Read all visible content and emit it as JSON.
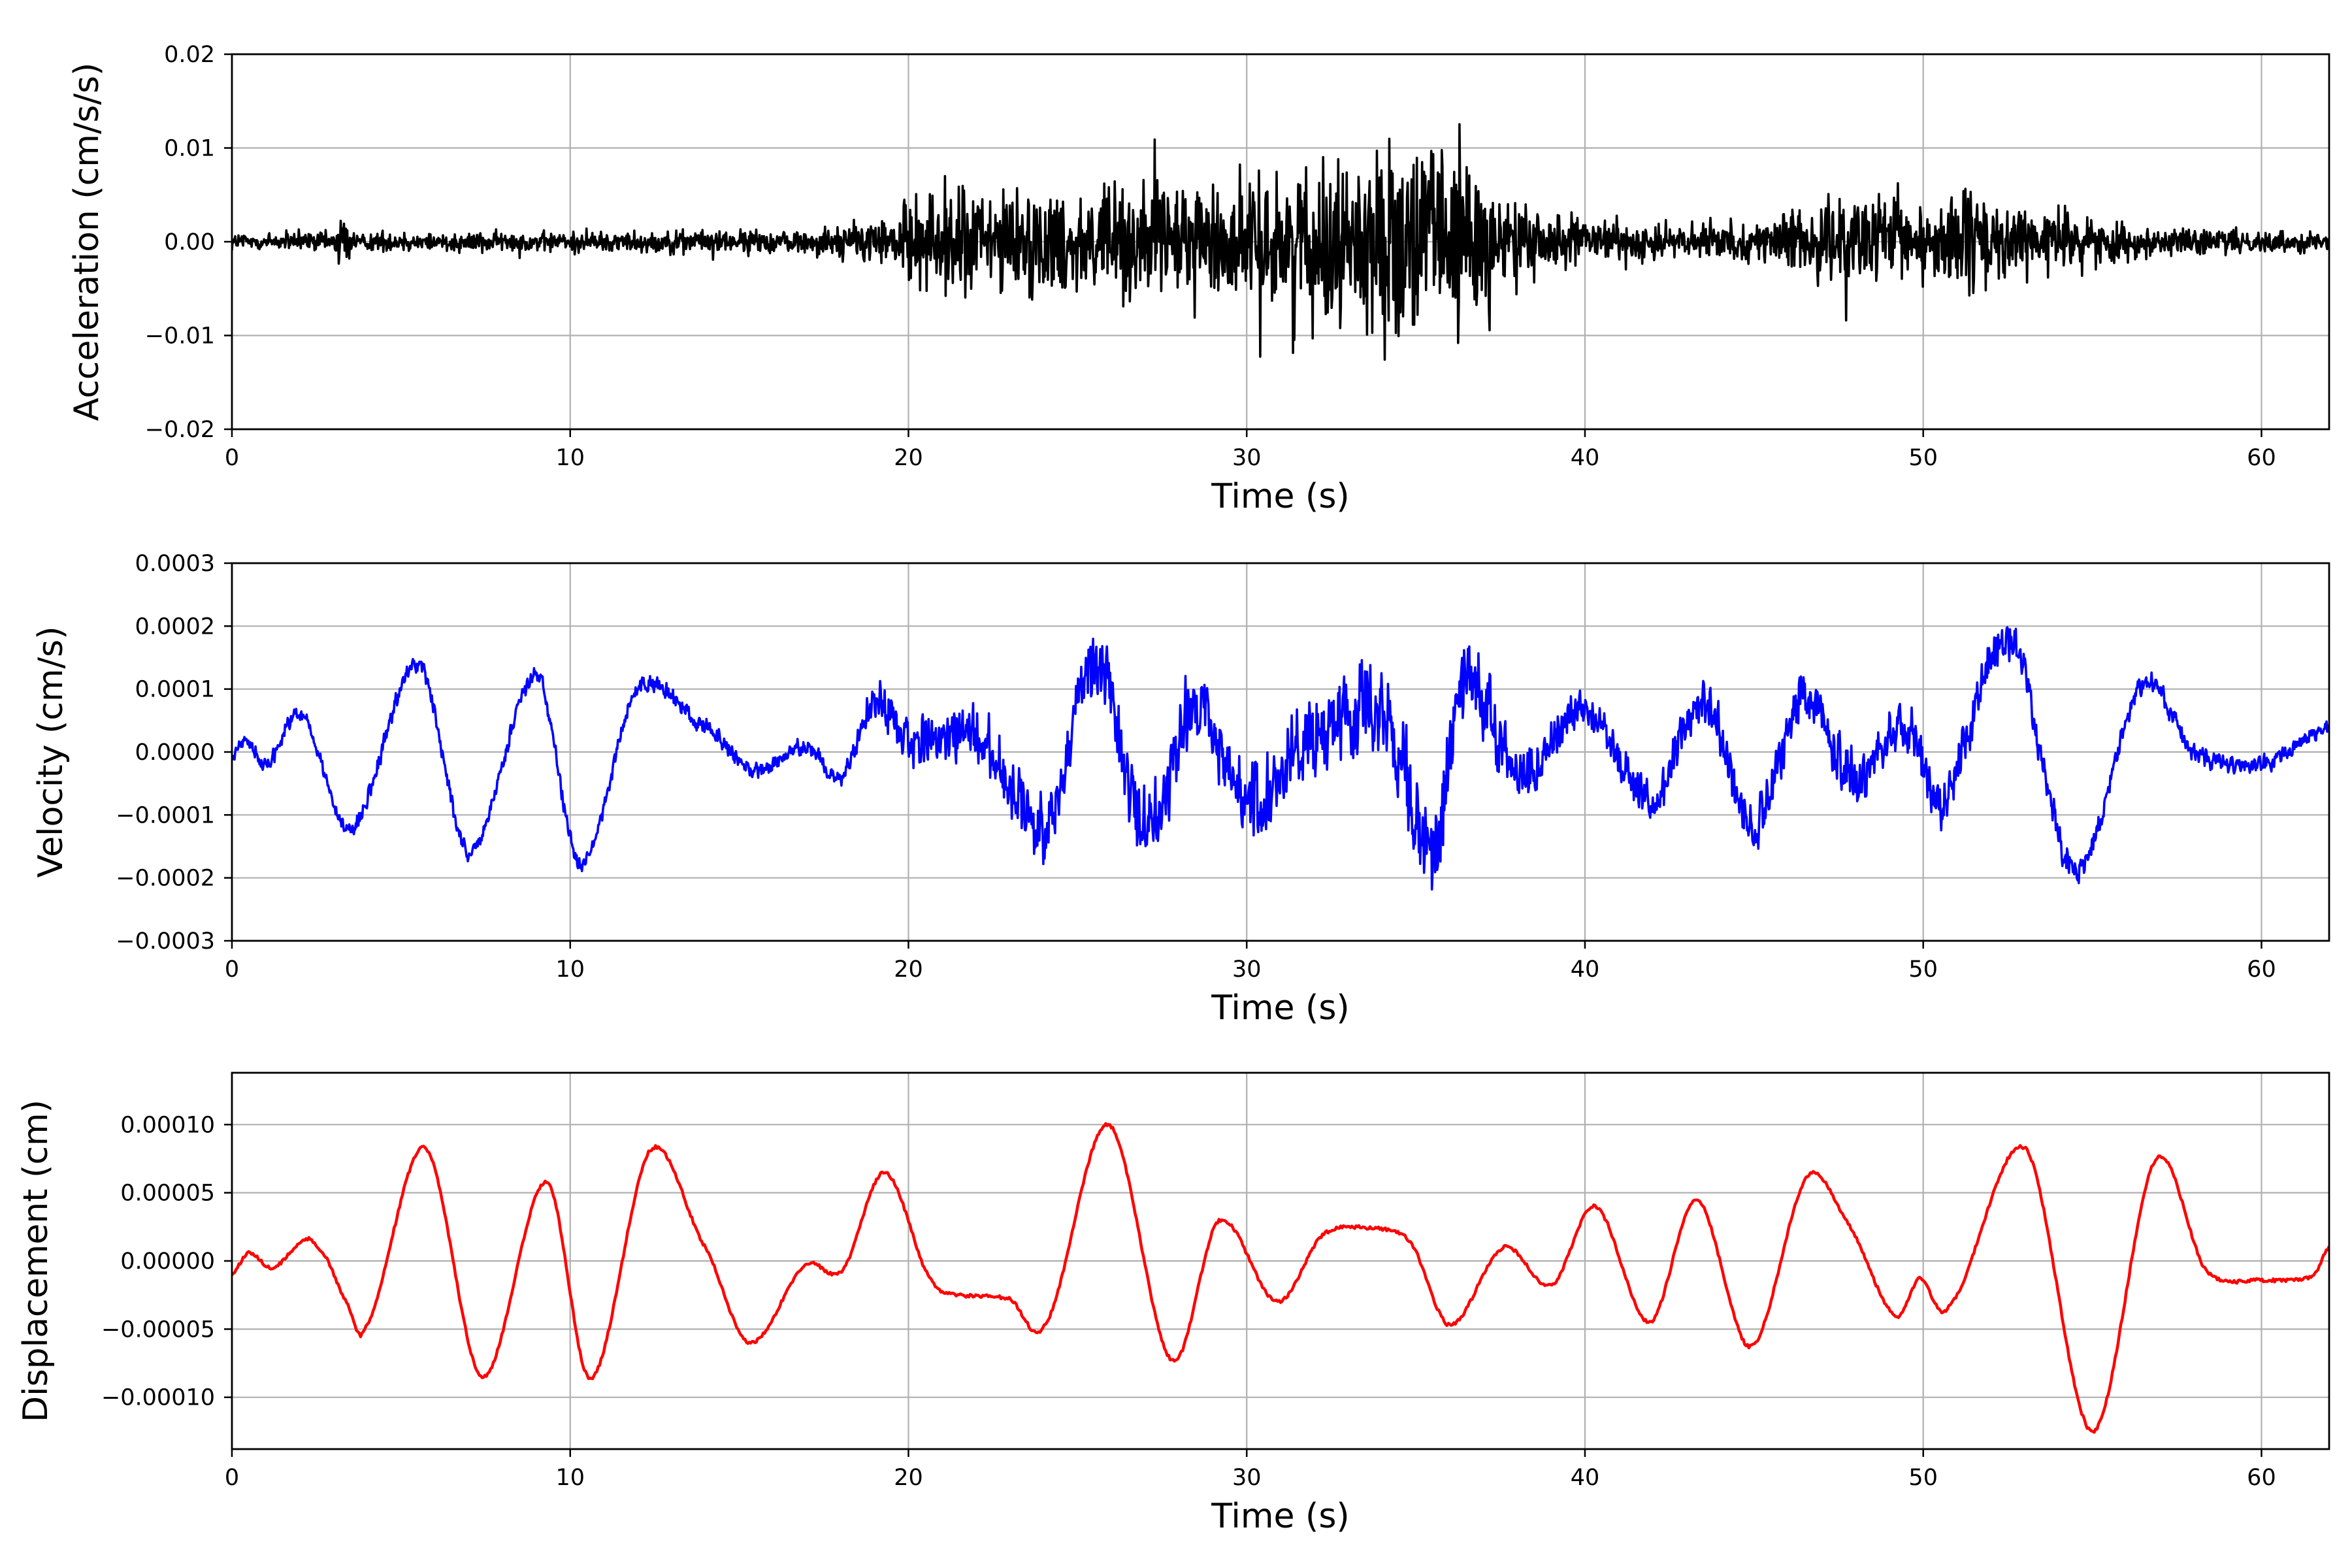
{
  "chart_data": [
    {
      "type": "line",
      "xlabel": "Time (s)",
      "ylabel": "Acceleration (cm/s/s)",
      "xlim": [
        0,
        62
      ],
      "ylim": [
        -0.02,
        0.02
      ],
      "grid": true,
      "series_color": "#000000",
      "x_ticks": [
        0,
        10,
        20,
        30,
        40,
        50,
        60
      ],
      "x_tick_labels": [
        "0",
        "10",
        "20",
        "30",
        "40",
        "50",
        "60"
      ],
      "y_ticks": [
        -0.02,
        -0.01,
        0.0,
        0.01,
        0.02
      ],
      "y_tick_labels": [
        "−0.02",
        "−0.01",
        "0.00",
        "0.01",
        "0.02"
      ],
      "envelope": {
        "t": [
          0,
          3,
          3.3,
          3.6,
          10,
          17,
          19.5,
          21,
          23,
          25,
          27,
          29,
          31,
          32.5,
          34,
          35.5,
          36.5,
          37.5,
          39,
          40,
          45,
          47,
          48,
          50,
          51,
          53,
          57,
          62
        ],
        "amp": [
          0.0015,
          0.0015,
          0.0055,
          0.0015,
          0.0015,
          0.0018,
          0.004,
          0.009,
          0.008,
          0.008,
          0.009,
          0.009,
          0.01,
          0.012,
          0.013,
          0.015,
          0.016,
          0.007,
          0.005,
          0.003,
          0.0025,
          0.006,
          0.007,
          0.006,
          0.008,
          0.005,
          0.002,
          0.0015
        ]
      }
    },
    {
      "type": "line",
      "xlabel": "Time (s)",
      "ylabel": "Velocity (cm/s)",
      "xlim": [
        0,
        62
      ],
      "ylim": [
        -0.0003,
        0.0003
      ],
      "grid": true,
      "series_color": "#0000ff",
      "x_ticks": [
        0,
        10,
        20,
        30,
        40,
        50,
        60
      ],
      "x_tick_labels": [
        "0",
        "10",
        "20",
        "30",
        "40",
        "50",
        "60"
      ],
      "y_ticks": [
        -0.0003,
        -0.0002,
        -0.0001,
        0.0,
        0.0001,
        0.0002,
        0.0003
      ],
      "y_tick_labels": [
        "−0.0003",
        "−0.0002",
        "−0.0001",
        "0.0000",
        "0.0001",
        "0.0002",
        "0.0003"
      ],
      "trend": {
        "t": [
          0,
          0.5,
          1,
          2,
          3.5,
          5.5,
          7,
          9,
          10.3,
          12,
          14,
          15.5,
          17,
          18,
          19,
          20,
          22,
          24,
          25.5,
          27,
          28.5,
          30,
          32,
          34,
          35.5,
          36.5,
          38,
          40,
          42,
          43.5,
          45,
          46.5,
          48,
          49.5,
          50.5,
          52.5,
          54.5,
          56.5,
          58,
          60,
          62
        ],
        "v": [
          0.0,
          2e-05,
          -2e-05,
          6e-05,
          -0.00012,
          0.00014,
          -0.00016,
          0.00012,
          -0.00018,
          0.0001,
          4e-05,
          -3e-05,
          1e-05,
          -4e-05,
          8e-05,
          2e-05,
          3e-05,
          -0.00012,
          0.00015,
          -0.00012,
          8e-05,
          -8e-05,
          3e-05,
          5e-05,
          -0.00015,
          0.00012,
          -4e-05,
          7e-05,
          -8e-05,
          8e-05,
          -0.00012,
          9e-05,
          -4e-05,
          5e-05,
          -8e-05,
          0.00018,
          -0.00019,
          0.00011,
          0.0,
          -2e-05,
          4e-05
        ]
      },
      "noise": {
        "t": [
          0,
          18,
          20,
          25,
          30,
          33,
          36,
          38,
          40,
          47,
          52,
          55,
          62
        ],
        "amp": [
          1.8e-05,
          1.8e-05,
          6e-05,
          8e-05,
          8e-05,
          0.0001,
          0.00011,
          6e-05,
          4e-05,
          6e-05,
          5e-05,
          2.5e-05,
          1.5e-05
        ]
      }
    },
    {
      "type": "line",
      "xlabel": "Time (s)",
      "ylabel": "Displacement (cm)",
      "xlim": [
        0,
        62
      ],
      "ylim": [
        -0.000138,
        0.000138
      ],
      "grid": true,
      "series_color": "#ff0000",
      "x_ticks": [
        0,
        10,
        20,
        30,
        40,
        50,
        60
      ],
      "x_tick_labels": [
        "0",
        "10",
        "20",
        "30",
        "40",
        "50",
        "60"
      ],
      "y_ticks": [
        -0.0001,
        -5e-05,
        0.0,
        5e-05,
        0.0001
      ],
      "y_tick_labels": [
        "−0.00010",
        "−0.00005",
        "0.00000",
        "0.00005",
        "0.00010"
      ],
      "x": [
        0,
        0.5,
        1.2,
        2.2,
        2.7,
        3.4,
        3.9,
        5.7,
        7.4,
        9.3,
        10.6,
        12.4,
        14,
        15.3,
        17,
        18,
        19.3,
        20.7,
        21.5,
        23,
        24,
        25.9,
        27.8,
        29.2,
        30.9,
        32.3,
        33.7,
        34.8,
        36,
        37.6,
        39,
        40.3,
        41.9,
        43.3,
        44.9,
        46.6,
        47.7,
        49.2,
        49.9,
        50.7,
        53,
        55,
        56.9,
        58.4,
        60,
        61.5,
        62
      ],
      "y": [
        -1e-05,
        6e-06,
        -5e-06,
        1.6e-05,
        5e-06,
        -3e-05,
        -5e-05,
        8.3e-05,
        -8.5e-05,
        5.8e-05,
        -8.6e-05,
        8.2e-05,
        1e-05,
        -6e-05,
        -3e-06,
        -8e-06,
        6.5e-05,
        -1.5e-05,
        -2.5e-05,
        -2.8e-05,
        -4.8e-05,
        0.0001,
        -7.3e-05,
        3e-05,
        -3e-05,
        2e-05,
        2.4e-05,
        1.5e-05,
        -4.7e-05,
        1e-05,
        -1.8e-05,
        4e-05,
        -4.5e-05,
        4.5e-05,
        -6.3e-05,
        6.2e-05,
        3e-05,
        -4e-05,
        -1.3e-05,
        -3.5e-05,
        8.3e-05,
        -0.000125,
        7.5e-05,
        -8e-06,
        -1.4e-05,
        -1.2e-05,
        1e-05
      ]
    }
  ]
}
